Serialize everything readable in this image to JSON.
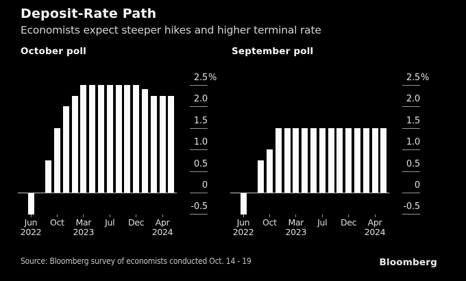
{
  "header": {
    "title": "Deposit-Rate Path",
    "subtitle": "Economists expect steeper hikes and higher terminal rate"
  },
  "footer": {
    "source": "Source: Bloomberg survey of economists conducted Oct. 14 - 19",
    "brand": "Bloomberg"
  },
  "colors": {
    "background": "#000000",
    "bar": "#fbfbfb",
    "axis_text": "#e3e3e3",
    "grid_tick": "#989898",
    "baseline": "#c9c9c9",
    "title": "#f5f5f5",
    "subtitle": "#d6d6d6",
    "source": "#c6c6c6"
  },
  "y_axis": {
    "ticks": [
      {
        "label": "2.5",
        "suffix": "%",
        "value": 2.5
      },
      {
        "label": "2.0",
        "value": 2.0
      },
      {
        "label": "1.5",
        "value": 1.5
      },
      {
        "label": "1.0",
        "value": 1.0
      },
      {
        "label": "0.5",
        "value": 0.5
      },
      {
        "label": "0",
        "value": 0
      },
      {
        "label": "-0.5",
        "value": -0.5
      }
    ]
  },
  "x_axis": {
    "ticks": [
      {
        "slot": 0,
        "line1": "Jun",
        "line2": "2022"
      },
      {
        "slot": 3,
        "line1": "Oct",
        "line2": ""
      },
      {
        "slot": 6,
        "line1": "Mar",
        "line2": "2023"
      },
      {
        "slot": 9,
        "line1": "Jul",
        "line2": ""
      },
      {
        "slot": 12,
        "line1": "Dec",
        "line2": ""
      },
      {
        "slot": 15,
        "line1": "Apr",
        "line2": "2024"
      }
    ]
  },
  "chart_data": [
    {
      "type": "bar",
      "title": "October poll",
      "categories": [
        "Jun 2022",
        "",
        "",
        "Oct",
        "",
        "",
        "Mar 2023",
        "",
        "",
        "Jul",
        "",
        "",
        "Dec",
        "",
        "",
        "Apr 2024",
        ""
      ],
      "values": [
        -0.5,
        0,
        0.75,
        1.5,
        2.0,
        2.25,
        2.5,
        2.5,
        2.5,
        2.5,
        2.5,
        2.5,
        2.5,
        2.4,
        2.25,
        2.25,
        2.25
      ],
      "ylabel": "%",
      "ylim": [
        -0.5,
        2.5
      ],
      "grid": "right-ticks",
      "legend": "none"
    },
    {
      "type": "bar",
      "title": "September poll",
      "categories": [
        "Jun 2022",
        "",
        "",
        "Oct",
        "",
        "",
        "Mar 2023",
        "",
        "",
        "Jul",
        "",
        "",
        "Dec",
        "",
        "",
        "Apr 2024",
        ""
      ],
      "values": [
        -0.5,
        0,
        0.75,
        1.0,
        1.5,
        1.5,
        1.5,
        1.5,
        1.5,
        1.5,
        1.5,
        1.5,
        1.5,
        1.5,
        1.5,
        1.5,
        1.5
      ],
      "ylabel": "%",
      "ylim": [
        -0.5,
        2.5
      ],
      "grid": "right-ticks",
      "legend": "none"
    }
  ]
}
